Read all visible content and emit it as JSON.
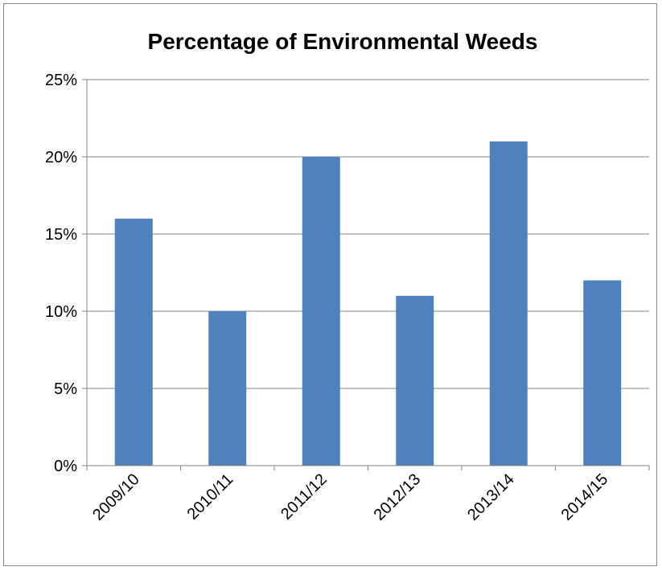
{
  "chart_data": {
    "type": "bar",
    "title": "Percentage of Environmental Weeds",
    "xlabel": "",
    "ylabel": "",
    "categories": [
      "2009/10",
      "2010/11",
      "2011/12",
      "2012/13",
      "2013/14",
      "2014/15"
    ],
    "values": [
      16,
      10,
      20,
      11,
      21,
      12
    ],
    "value_unit": "%",
    "ylim": [
      0,
      25
    ],
    "yticks": [
      0,
      5,
      10,
      15,
      20,
      25
    ],
    "ytick_labels": [
      "0%",
      "5%",
      "10%",
      "15%",
      "20%",
      "25%"
    ],
    "grid": true,
    "legend": "none",
    "bar_color": "#4F81BD",
    "grid_color": "#868686"
  }
}
